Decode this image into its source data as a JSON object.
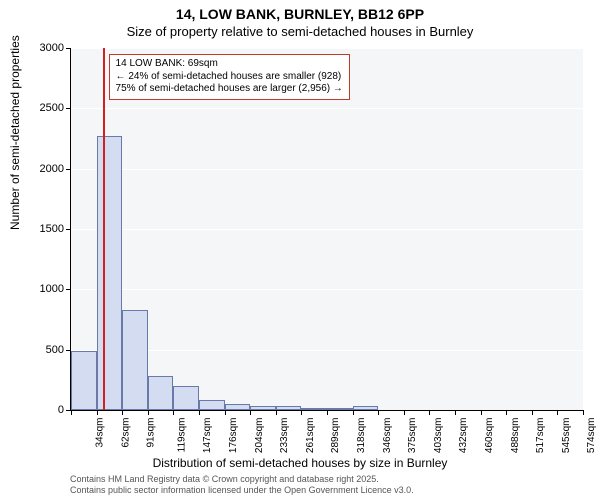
{
  "title_line1": "14, LOW BANK, BURNLEY, BB12 6PP",
  "title_line2": "Size of property relative to semi-detached houses in Burnley",
  "chart": {
    "type": "histogram",
    "background_color": "#f5f6f7",
    "grid_color": "#ffffff",
    "bar_fill": "#d3dcf0",
    "bar_border": "#6a7aa8",
    "ref_line_color": "#d02020",
    "anno_border": "#c0392b",
    "ylim": [
      0,
      3000
    ],
    "ytick_step": 500,
    "ylabel": "Number of semi-detached properties",
    "xlabel": "Distribution of semi-detached houses by size in Burnley",
    "x_ticks": [
      "34sqm",
      "62sqm",
      "91sqm",
      "119sqm",
      "147sqm",
      "176sqm",
      "204sqm",
      "233sqm",
      "261sqm",
      "289sqm",
      "318sqm",
      "346sqm",
      "375sqm",
      "403sqm",
      "432sqm",
      "460sqm",
      "488sqm",
      "517sqm",
      "545sqm",
      "574sqm",
      "602sqm"
    ],
    "bars": [
      490,
      2270,
      830,
      280,
      200,
      80,
      50,
      30,
      30,
      20,
      10,
      30,
      0,
      0,
      0,
      0,
      0,
      0,
      0,
      0
    ],
    "ref_line_x": 69,
    "x_range": [
      34,
      602
    ],
    "annotation": {
      "line1": "14 LOW BANK: 69sqm",
      "line2": "← 24% of semi-detached houses are smaller (928)",
      "line3": "75% of semi-detached houses are larger (2,956) →"
    }
  },
  "footer_line1": "Contains HM Land Registry data © Crown copyright and database right 2025.",
  "footer_line2": "Contains public sector information licensed under the Open Government Licence v3.0."
}
